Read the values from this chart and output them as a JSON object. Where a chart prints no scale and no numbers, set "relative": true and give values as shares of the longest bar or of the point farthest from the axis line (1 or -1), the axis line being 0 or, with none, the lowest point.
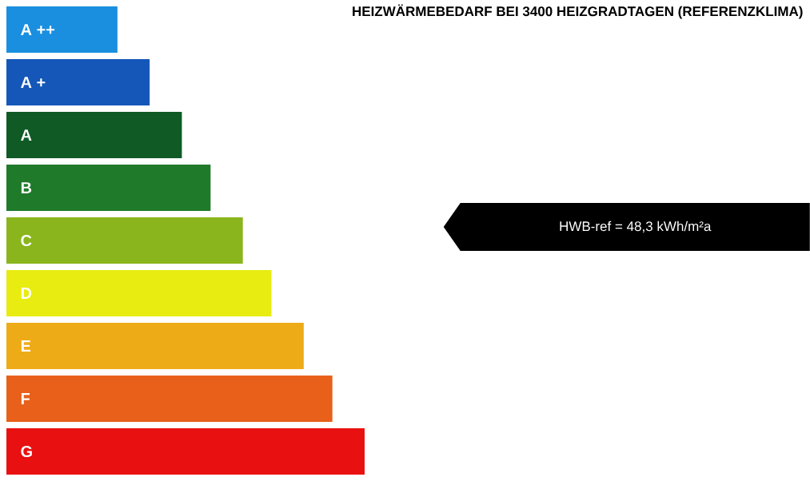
{
  "chart_data": {
    "type": "bar",
    "orientation": "horizontal",
    "relative": true,
    "title": "HEIZWÄRMEBEDARF BEI 3400 HEIZGRADTAGEN (REFERENZKLIMA)",
    "categories": [
      "A ++",
      "A +",
      "A",
      "B",
      "C",
      "D",
      "E",
      "F",
      "G"
    ],
    "values": [
      0.31,
      0.4,
      0.49,
      0.57,
      0.66,
      0.74,
      0.83,
      0.91,
      1
    ],
    "colors": [
      "#1a8fe0",
      "#1457b8",
      "#0f5a25",
      "#1f7a2a",
      "#8ab51c",
      "#e8ec10",
      "#eeab18",
      "#e8601a",
      "#e81010"
    ],
    "annotations": [
      "HWB-ref =      48,3 kWh/m²a"
    ]
  }
}
